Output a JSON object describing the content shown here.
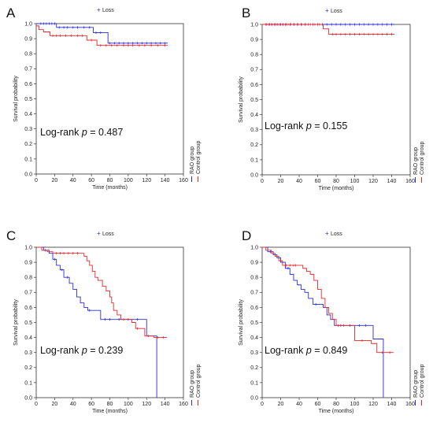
{
  "colors": {
    "rao": "#2b2bd9",
    "control": "#e8262a",
    "axis": "#333333"
  },
  "chart_data": [
    {
      "type": "line",
      "panel_label": "A",
      "legend_title": "Loss",
      "xlabel": "Time (months)",
      "ylabel": "Survival probability",
      "xlim": [
        0,
        160
      ],
      "ylim": [
        0,
        1.0
      ],
      "xticks": [
        "0",
        "20",
        "40",
        "60",
        "80",
        "100",
        "120",
        "140",
        "160"
      ],
      "yticks": [
        "0.0",
        "0.1",
        "0.2",
        "0.3",
        "0.4",
        "0.5",
        "0.6",
        "0.7",
        "0.8",
        "0.9",
        "1.0"
      ],
      "annotation_prefix": "Log-rank ",
      "annotation_var": "p",
      "annotation_eq": " = 0.487",
      "series": [
        {
          "name": "RAO group",
          "color_key": "rao",
          "steps": [
            [
              0,
              1.0
            ],
            [
              22,
              0.975
            ],
            [
              62,
              0.94
            ],
            [
              78,
              0.87
            ],
            [
              143,
              0.87
            ]
          ],
          "censor": [
            5,
            8,
            11,
            14,
            17,
            20,
            25,
            30,
            34,
            40,
            45,
            52,
            58,
            65,
            70,
            80,
            85,
            90,
            95,
            100,
            105,
            110,
            115,
            120,
            125,
            130,
            135,
            140
          ]
        },
        {
          "name": "Control group",
          "color_key": "control",
          "steps": [
            [
              0,
              0.985
            ],
            [
              3,
              0.96
            ],
            [
              8,
              0.945
            ],
            [
              15,
              0.92
            ],
            [
              55,
              0.89
            ],
            [
              66,
              0.855
            ],
            [
              143,
              0.855
            ]
          ],
          "censor": [
            18,
            22,
            26,
            32,
            38,
            45,
            50,
            60,
            70,
            76,
            82,
            88,
            95,
            100,
            105,
            112,
            118,
            125,
            132,
            140
          ]
        }
      ],
      "legend_items": [
        "RAO group",
        "Control group"
      ]
    },
    {
      "type": "line",
      "panel_label": "B",
      "legend_title": "Loss",
      "xlabel": "Time (months)",
      "ylabel": "Survival probability",
      "xlim": [
        0,
        160
      ],
      "ylim": [
        0,
        1.0
      ],
      "xticks": [
        "0",
        "20",
        "40",
        "60",
        "80",
        "100",
        "120",
        "140",
        "160"
      ],
      "yticks": [
        "0.0",
        "0.1",
        "0.2",
        "0.3",
        "0.4",
        "0.5",
        "0.6",
        "0.7",
        "0.8",
        "0.9",
        "1.0"
      ],
      "annotation_prefix": "Log-rank ",
      "annotation_var": "p",
      "annotation_eq": " = 0.155",
      "series": [
        {
          "name": "RAO group",
          "color_key": "rao",
          "steps": [
            [
              0,
              1.0
            ],
            [
              143,
              1.0
            ]
          ],
          "censor": [
            5,
            8,
            11,
            14,
            17,
            20,
            23,
            26,
            30,
            34,
            38,
            42,
            46,
            50,
            55,
            60,
            65,
            70,
            75,
            80,
            85,
            90,
            95,
            100,
            105,
            110,
            115,
            120,
            125,
            130,
            135,
            140
          ]
        },
        {
          "name": "Control group",
          "color_key": "control",
          "steps": [
            [
              0,
              1.0
            ],
            [
              66,
              0.97
            ],
            [
              72,
              0.935
            ],
            [
              143,
              0.935
            ]
          ],
          "censor": [
            4,
            7,
            10,
            13,
            16,
            19,
            22,
            25,
            28,
            31,
            35,
            39,
            43,
            47,
            52,
            57,
            62,
            76,
            80,
            85,
            90,
            95,
            100,
            105,
            110,
            115,
            120,
            125,
            130,
            135,
            140
          ]
        }
      ],
      "legend_items": [
        "RAO group",
        "Control group"
      ]
    },
    {
      "type": "line",
      "panel_label": "C",
      "legend_title": "Loss",
      "xlabel": "Time (months)",
      "ylabel": "Survival probability",
      "xlim": [
        0,
        160
      ],
      "ylim": [
        0,
        1.0
      ],
      "xticks": [
        "0",
        "20",
        "40",
        "60",
        "80",
        "100",
        "120",
        "140",
        "160"
      ],
      "yticks": [
        "0.0",
        "0.1",
        "0.2",
        "0.3",
        "0.4",
        "0.5",
        "0.6",
        "0.7",
        "0.8",
        "0.9",
        "1.0"
      ],
      "annotation_prefix": "Log-rank ",
      "annotation_var": "p",
      "annotation_eq": " = 0.239",
      "series": [
        {
          "name": "RAO group",
          "color_key": "rao",
          "steps": [
            [
              0,
              1.0
            ],
            [
              8,
              0.98
            ],
            [
              14,
              0.96
            ],
            [
              18,
              0.92
            ],
            [
              22,
              0.88
            ],
            [
              26,
              0.85
            ],
            [
              30,
              0.8
            ],
            [
              36,
              0.76
            ],
            [
              40,
              0.72
            ],
            [
              44,
              0.67
            ],
            [
              48,
              0.63
            ],
            [
              52,
              0.6
            ],
            [
              56,
              0.58
            ],
            [
              62,
              0.58
            ],
            [
              70,
              0.52
            ],
            [
              118,
              0.52
            ],
            [
              120,
              0.41
            ],
            [
              131,
              0.41
            ],
            [
              131,
              0.0
            ]
          ],
          "censor": [
            10,
            20,
            28,
            34,
            58,
            75,
            80,
            90,
            100,
            110
          ]
        },
        {
          "name": "Control group",
          "color_key": "control",
          "steps": [
            [
              0,
              1.0
            ],
            [
              6,
              0.98
            ],
            [
              12,
              0.97
            ],
            [
              18,
              0.96
            ],
            [
              48,
              0.96
            ],
            [
              52,
              0.94
            ],
            [
              55,
              0.91
            ],
            [
              58,
              0.88
            ],
            [
              61,
              0.84
            ],
            [
              64,
              0.8
            ],
            [
              67,
              0.78
            ],
            [
              72,
              0.74
            ],
            [
              76,
              0.71
            ],
            [
              80,
              0.67
            ],
            [
              82,
              0.63
            ],
            [
              84,
              0.58
            ],
            [
              88,
              0.55
            ],
            [
              92,
              0.52
            ],
            [
              100,
              0.52
            ],
            [
              104,
              0.5
            ],
            [
              108,
              0.46
            ],
            [
              114,
              0.46
            ],
            [
              118,
              0.41
            ],
            [
              124,
              0.41
            ],
            [
              128,
              0.4
            ],
            [
              142,
              0.4
            ]
          ],
          "censor": [
            22,
            26,
            30,
            35,
            40,
            45,
            95,
            110,
            122,
            132,
            138
          ]
        }
      ],
      "legend_items": [
        "RAO group",
        "Control group"
      ]
    },
    {
      "type": "line",
      "panel_label": "D",
      "legend_title": "Loss",
      "xlabel": "Time (months)",
      "ylabel": "Survival probability",
      "xlim": [
        0,
        160
      ],
      "ylim": [
        0,
        1.0
      ],
      "xticks": [
        "0",
        "20",
        "40",
        "60",
        "80",
        "100",
        "120",
        "140",
        "160"
      ],
      "yticks": [
        "0.0",
        "0.1",
        "0.2",
        "0.3",
        "0.4",
        "0.5",
        "0.6",
        "0.7",
        "0.8",
        "0.9",
        "1.0"
      ],
      "annotation_prefix": "Log-rank ",
      "annotation_var": "p",
      "annotation_eq": " = 0.849",
      "series": [
        {
          "name": "RAO group",
          "color_key": "rao",
          "steps": [
            [
              0,
              1.0
            ],
            [
              6,
              0.97
            ],
            [
              12,
              0.95
            ],
            [
              16,
              0.93
            ],
            [
              20,
              0.9
            ],
            [
              25,
              0.86
            ],
            [
              30,
              0.82
            ],
            [
              34,
              0.78
            ],
            [
              38,
              0.75
            ],
            [
              42,
              0.72
            ],
            [
              46,
              0.7
            ],
            [
              50,
              0.66
            ],
            [
              55,
              0.62
            ],
            [
              62,
              0.62
            ],
            [
              66,
              0.6
            ],
            [
              70,
              0.55
            ],
            [
              74,
              0.52
            ],
            [
              78,
              0.48
            ],
            [
              118,
              0.48
            ],
            [
              120,
              0.39
            ],
            [
              131,
              0.39
            ],
            [
              131,
              0.0
            ]
          ],
          "censor": [
            9,
            22,
            28,
            58,
            85,
            95,
            105,
            112
          ]
        },
        {
          "name": "Control group",
          "color_key": "control",
          "steps": [
            [
              0,
              1.0
            ],
            [
              4,
              0.98
            ],
            [
              10,
              0.96
            ],
            [
              14,
              0.94
            ],
            [
              18,
              0.91
            ],
            [
              22,
              0.88
            ],
            [
              40,
              0.88
            ],
            [
              44,
              0.86
            ],
            [
              48,
              0.84
            ],
            [
              52,
              0.82
            ],
            [
              56,
              0.78
            ],
            [
              60,
              0.72
            ],
            [
              64,
              0.66
            ],
            [
              68,
              0.6
            ],
            [
              72,
              0.56
            ],
            [
              76,
              0.52
            ],
            [
              80,
              0.48
            ],
            [
              95,
              0.48
            ],
            [
              100,
              0.38
            ],
            [
              112,
              0.38
            ],
            [
              118,
              0.36
            ],
            [
              124,
              0.3
            ],
            [
              142,
              0.3
            ]
          ],
          "censor": [
            26,
            30,
            34,
            36,
            82,
            88,
            108,
            130,
            138
          ]
        }
      ],
      "legend_items": [
        "RAO group",
        "Control group"
      ]
    }
  ]
}
